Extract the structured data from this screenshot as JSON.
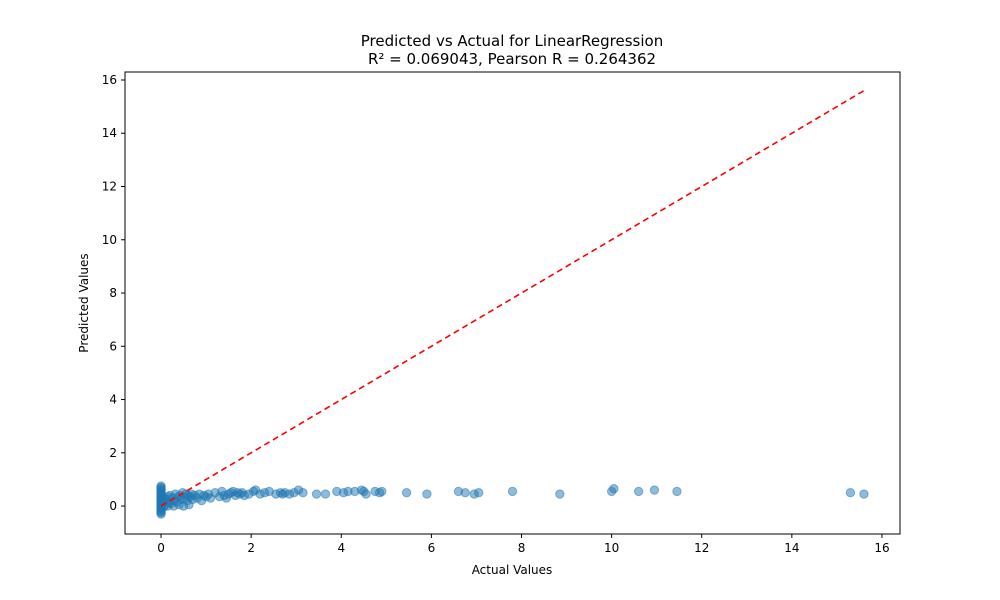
{
  "chart_data": {
    "type": "scatter",
    "title": "Predicted vs Actual for LinearRegression",
    "subtitle": "R² = 0.069043, Pearson R = 0.264362",
    "xlabel": "Actual Values",
    "ylabel": "Predicted Values",
    "xlim": [
      -0.8,
      16.4
    ],
    "ylim": [
      -1.05,
      16.3
    ],
    "xticks": [
      "0",
      "2",
      "4",
      "6",
      "8",
      "10",
      "12",
      "14",
      "16"
    ],
    "yticks": [
      "0",
      "2",
      "4",
      "6",
      "8",
      "10",
      "12",
      "14",
      "16"
    ],
    "grid": false,
    "series": [
      {
        "marker_color": "#1f77b4",
        "marker_alpha": 0.5,
        "points": [
          [
            0,
            -0.3
          ],
          [
            0,
            -0.25
          ],
          [
            0,
            -0.2
          ],
          [
            0,
            -0.15
          ],
          [
            0,
            -0.1
          ],
          [
            0,
            -0.05
          ],
          [
            0,
            0.0
          ],
          [
            0,
            0.05
          ],
          [
            0,
            0.1
          ],
          [
            0,
            0.15
          ],
          [
            0,
            0.2
          ],
          [
            0,
            0.25
          ],
          [
            0,
            0.3
          ],
          [
            0,
            0.35
          ],
          [
            0,
            0.4
          ],
          [
            0,
            0.45
          ],
          [
            0,
            0.5
          ],
          [
            0,
            0.55
          ],
          [
            0,
            0.6
          ],
          [
            0,
            0.65
          ],
          [
            0,
            0.7
          ],
          [
            0,
            0.75
          ],
          [
            0.03,
            0.1
          ],
          [
            0.05,
            -0.05
          ],
          [
            0.05,
            0.2
          ],
          [
            0.08,
            0.3
          ],
          [
            0.1,
            0.05
          ],
          [
            0.12,
            0.25
          ],
          [
            0.15,
            0.0
          ],
          [
            0.15,
            0.35
          ],
          [
            0.18,
            0.15
          ],
          [
            0.2,
            0.4
          ],
          [
            0.22,
            0.1
          ],
          [
            0.25,
            0.3
          ],
          [
            0.28,
            0.0
          ],
          [
            0.3,
            0.2
          ],
          [
            0.32,
            0.45
          ],
          [
            0.35,
            0.15
          ],
          [
            0.38,
            0.35
          ],
          [
            0.4,
            0.05
          ],
          [
            0.42,
            0.4
          ],
          [
            0.45,
            0.25
          ],
          [
            0.48,
            0.5
          ],
          [
            0.5,
            0.0
          ],
          [
            0.52,
            0.3
          ],
          [
            0.55,
            0.45
          ],
          [
            0.58,
            0.2
          ],
          [
            0.6,
            0.4
          ],
          [
            0.62,
            0.05
          ],
          [
            0.65,
            0.35
          ],
          [
            0.68,
            0.45
          ],
          [
            0.7,
            0.25
          ],
          [
            0.75,
            0.4
          ],
          [
            0.8,
            0.3
          ],
          [
            0.85,
            0.45
          ],
          [
            0.9,
            0.2
          ],
          [
            0.95,
            0.4
          ],
          [
            1.0,
            0.35
          ],
          [
            1.05,
            0.45
          ],
          [
            1.1,
            0.3
          ],
          [
            1.2,
            0.5
          ],
          [
            1.3,
            0.35
          ],
          [
            1.35,
            0.55
          ],
          [
            1.4,
            0.4
          ],
          [
            1.45,
            0.3
          ],
          [
            1.5,
            0.45
          ],
          [
            1.55,
            0.5
          ],
          [
            1.6,
            0.55
          ],
          [
            1.65,
            0.4
          ],
          [
            1.7,
            0.5
          ],
          [
            1.75,
            0.45
          ],
          [
            1.8,
            0.5
          ],
          [
            1.85,
            0.4
          ],
          [
            1.95,
            0.45
          ],
          [
            2.05,
            0.55
          ],
          [
            2.1,
            0.6
          ],
          [
            2.2,
            0.45
          ],
          [
            2.3,
            0.5
          ],
          [
            2.4,
            0.55
          ],
          [
            2.55,
            0.45
          ],
          [
            2.65,
            0.5
          ],
          [
            2.7,
            0.45
          ],
          [
            2.75,
            0.5
          ],
          [
            2.85,
            0.45
          ],
          [
            2.95,
            0.5
          ],
          [
            3.05,
            0.6
          ],
          [
            3.15,
            0.5
          ],
          [
            3.45,
            0.45
          ],
          [
            3.65,
            0.45
          ],
          [
            3.9,
            0.55
          ],
          [
            4.05,
            0.5
          ],
          [
            4.15,
            0.55
          ],
          [
            4.3,
            0.55
          ],
          [
            4.45,
            0.6
          ],
          [
            4.5,
            0.55
          ],
          [
            4.55,
            0.45
          ],
          [
            4.75,
            0.55
          ],
          [
            4.85,
            0.5
          ],
          [
            4.9,
            0.55
          ],
          [
            5.45,
            0.5
          ],
          [
            5.9,
            0.45
          ],
          [
            6.6,
            0.55
          ],
          [
            6.75,
            0.5
          ],
          [
            6.95,
            0.45
          ],
          [
            7.05,
            0.5
          ],
          [
            7.8,
            0.55
          ],
          [
            8.85,
            0.45
          ],
          [
            10.0,
            0.55
          ],
          [
            10.05,
            0.65
          ],
          [
            10.6,
            0.55
          ],
          [
            10.95,
            0.6
          ],
          [
            11.45,
            0.55
          ],
          [
            15.3,
            0.5
          ],
          [
            15.6,
            0.45
          ]
        ]
      },
      {
        "line_color": "#ff0000",
        "line_style": "dashed",
        "points": [
          [
            0,
            0
          ],
          [
            15.6,
            15.6
          ]
        ]
      }
    ]
  }
}
